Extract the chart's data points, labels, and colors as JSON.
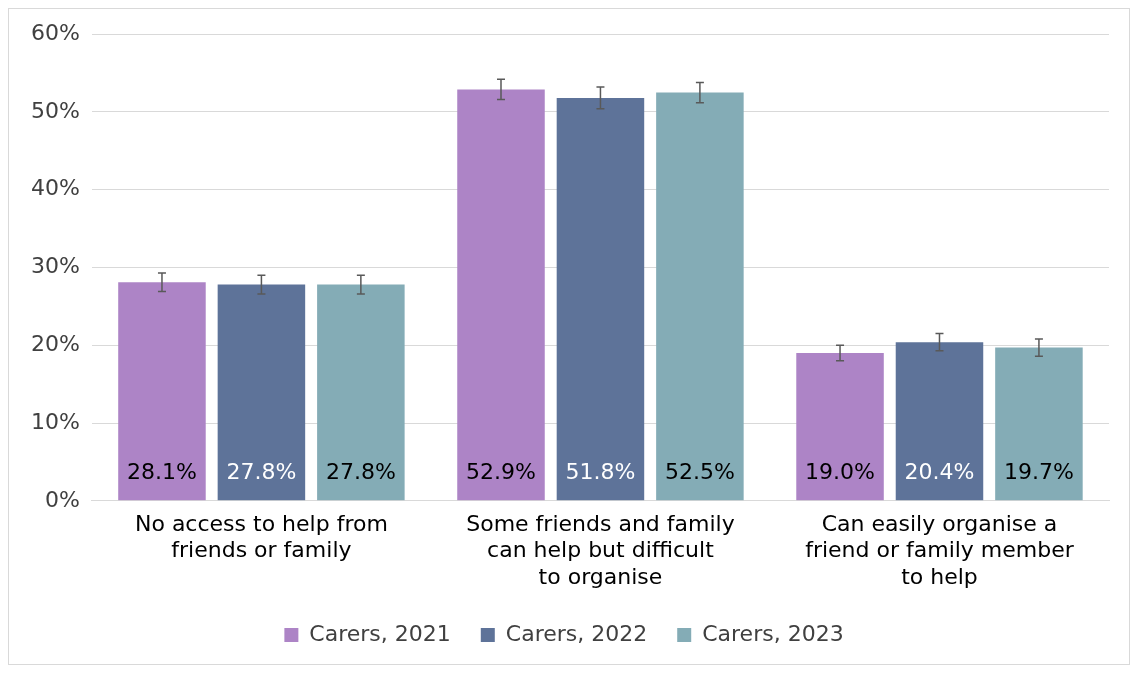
{
  "chart_data": {
    "type": "bar",
    "categories": [
      "No access to help from friends or family",
      "Some friends and family can help but difficult to organise",
      "Can easily organise a friend or family member to help"
    ],
    "series": [
      {
        "name": "Carers, 2021",
        "color": "#ad84c6",
        "values": [
          28.1,
          52.9,
          19.0
        ],
        "errors": [
          1.2,
          1.3,
          1.0
        ],
        "value_labels": [
          "28.1%",
          "52.9%",
          "19.0%"
        ]
      },
      {
        "name": "Carers, 2022",
        "color": "#5e7399",
        "values": [
          27.8,
          51.8,
          20.4
        ],
        "errors": [
          1.2,
          1.4,
          1.1
        ],
        "value_labels": [
          "27.8%",
          "51.8%",
          "20.4%"
        ]
      },
      {
        "name": "Carers, 2023",
        "color": "#84acb6",
        "values": [
          27.8,
          52.5,
          19.7
        ],
        "errors": [
          1.2,
          1.3,
          1.1
        ],
        "value_labels": [
          "27.8%",
          "52.5%",
          "19.7%"
        ]
      }
    ],
    "ylim": [
      0,
      60
    ],
    "yticks": [
      {
        "value": 0,
        "label": "0%"
      },
      {
        "value": 10,
        "label": "10%"
      },
      {
        "value": 20,
        "label": "20%"
      },
      {
        "value": 30,
        "label": "30%"
      },
      {
        "value": 40,
        "label": "40%"
      },
      {
        "value": 50,
        "label": "50%"
      },
      {
        "value": 60,
        "label": "60%"
      }
    ],
    "grid": "y",
    "legend": "bottom"
  }
}
